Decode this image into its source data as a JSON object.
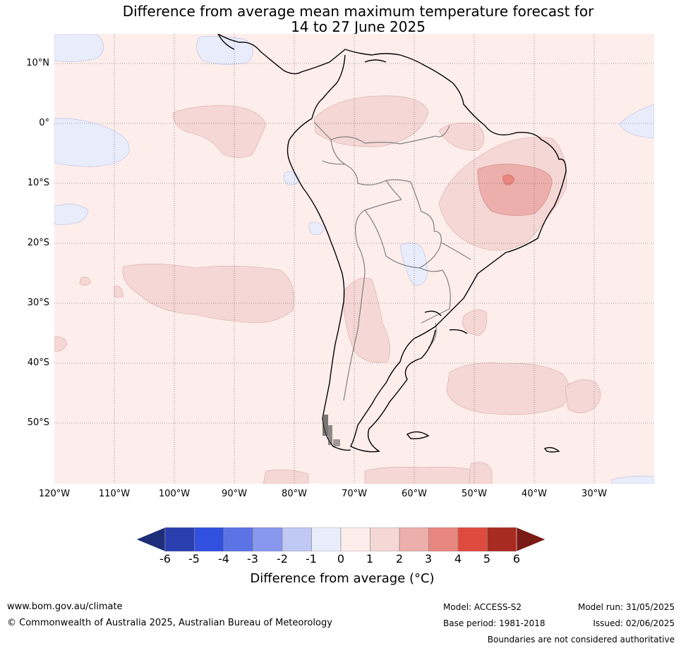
{
  "title": {
    "line1": "Difference from average mean maximum temperature forecast for",
    "line2": "14 to 27 June 2025"
  },
  "map": {
    "lat_labels": [
      "10°N",
      "0°",
      "10°S",
      "20°S",
      "30°S",
      "40°S",
      "50°S"
    ],
    "lon_labels": [
      "120°W",
      "110°W",
      "100°W",
      "90°W",
      "80°W",
      "70°W",
      "60°W",
      "50°W",
      "40°W",
      "30°W"
    ],
    "colors": {
      "bin_0_1": "#fdeeec",
      "bin_1_2": "#f5d7d5",
      "bin_2_3": "#edafab",
      "bin_3_4": "#e8877f",
      "bin_m1_0": "#e9ecfb",
      "coast": "#000000",
      "border": "#808080"
    }
  },
  "colorbar": {
    "ticks": [
      "-6",
      "-5",
      "-4",
      "-3",
      "-2",
      "-1",
      "0",
      "1",
      "2",
      "3",
      "4",
      "5",
      "6"
    ],
    "bin_colors": [
      "#1f2e7a",
      "#2a3eb0",
      "#3150e0",
      "#5c73e6",
      "#8898ee",
      "#c0c8f4",
      "#e9ecfb",
      "#fdeeec",
      "#f5d7d5",
      "#edafab",
      "#e8877f",
      "#de4b3e",
      "#a82a21",
      "#7a1a14"
    ],
    "label": "Difference from average (°C)"
  },
  "footer": {
    "website": "www.bom.gov.au/climate",
    "copyright": "© Commonwealth of Australia 2025, Australian Bureau of Meteorology",
    "model": "Model: ACCESS-S2",
    "base_period": "Base period: 1981-2018",
    "model_run": "Model run: 31/05/2025",
    "issued": "Issued: 02/06/2025",
    "disclaimer": "Boundaries are not considered authoritative"
  }
}
